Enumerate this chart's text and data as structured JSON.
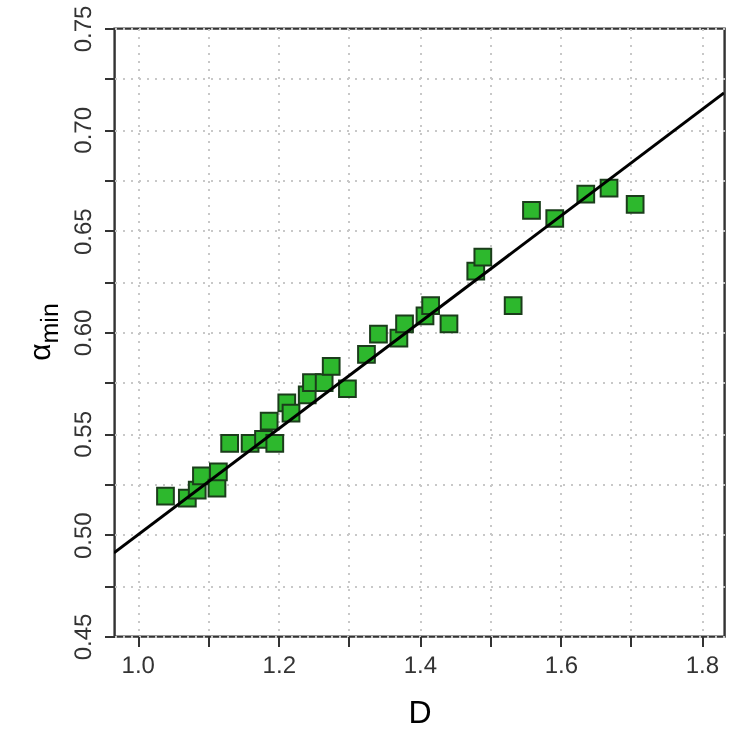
{
  "chart_data": {
    "type": "scatter",
    "xlabel": "D",
    "ylabel": "α$_{min}$",
    "xlim": [
      0.967,
      1.832
    ],
    "ylim": [
      0.45,
      0.75
    ],
    "xticks": [
      {
        "value": 1.0,
        "label": "1.0"
      },
      {
        "value": 1.1,
        "label": null
      },
      {
        "value": 1.2,
        "label": "1.2"
      },
      {
        "value": 1.3,
        "label": null
      },
      {
        "value": 1.4,
        "label": "1.4"
      },
      {
        "value": 1.5,
        "label": null
      },
      {
        "value": 1.6,
        "label": "1.6"
      },
      {
        "value": 1.7,
        "label": null
      },
      {
        "value": 1.8,
        "label": "1.8"
      }
    ],
    "yticks": [
      {
        "value": 0.45,
        "label": "0.45"
      },
      {
        "value": 0.475,
        "label": null
      },
      {
        "value": 0.5,
        "label": "0.50"
      },
      {
        "value": 0.525,
        "label": null
      },
      {
        "value": 0.55,
        "label": "0.55"
      },
      {
        "value": 0.575,
        "label": null
      },
      {
        "value": 0.6,
        "label": "0.60"
      },
      {
        "value": 0.625,
        "label": null
      },
      {
        "value": 0.65,
        "label": "0.65"
      },
      {
        "value": 0.675,
        "label": null
      },
      {
        "value": 0.7,
        "label": "0.70"
      },
      {
        "value": 0.725,
        "label": null
      },
      {
        "value": 0.75,
        "label": "0.75"
      }
    ],
    "grid": true,
    "series": [
      {
        "color": "#2db82d",
        "marker": "square",
        "x": [
          1.04,
          1.071,
          1.085,
          1.091,
          1.113,
          1.115,
          1.131,
          1.16,
          1.179,
          1.187,
          1.195,
          1.212,
          1.218,
          1.241,
          1.247,
          1.265,
          1.275,
          1.298,
          1.325,
          1.342,
          1.371,
          1.379,
          1.408,
          1.416,
          1.442,
          1.48,
          1.49,
          1.533,
          1.559,
          1.592,
          1.636,
          1.669,
          1.706
        ],
        "values": [
          0.519,
          0.518,
          0.522,
          0.529,
          0.523,
          0.531,
          0.545,
          0.545,
          0.547,
          0.556,
          0.545,
          0.565,
          0.56,
          0.569,
          0.575,
          0.575,
          0.583,
          0.572,
          0.589,
          0.599,
          0.597,
          0.604,
          0.608,
          0.613,
          0.604,
          0.63,
          0.637,
          0.613,
          0.66,
          0.656,
          0.668,
          0.671,
          0.663
        ]
      },
      {
        "type": "line",
        "color": "#000000",
        "x": [
          0.967,
          1.832
        ],
        "values": [
          0.491,
          0.718
        ]
      }
    ]
  }
}
